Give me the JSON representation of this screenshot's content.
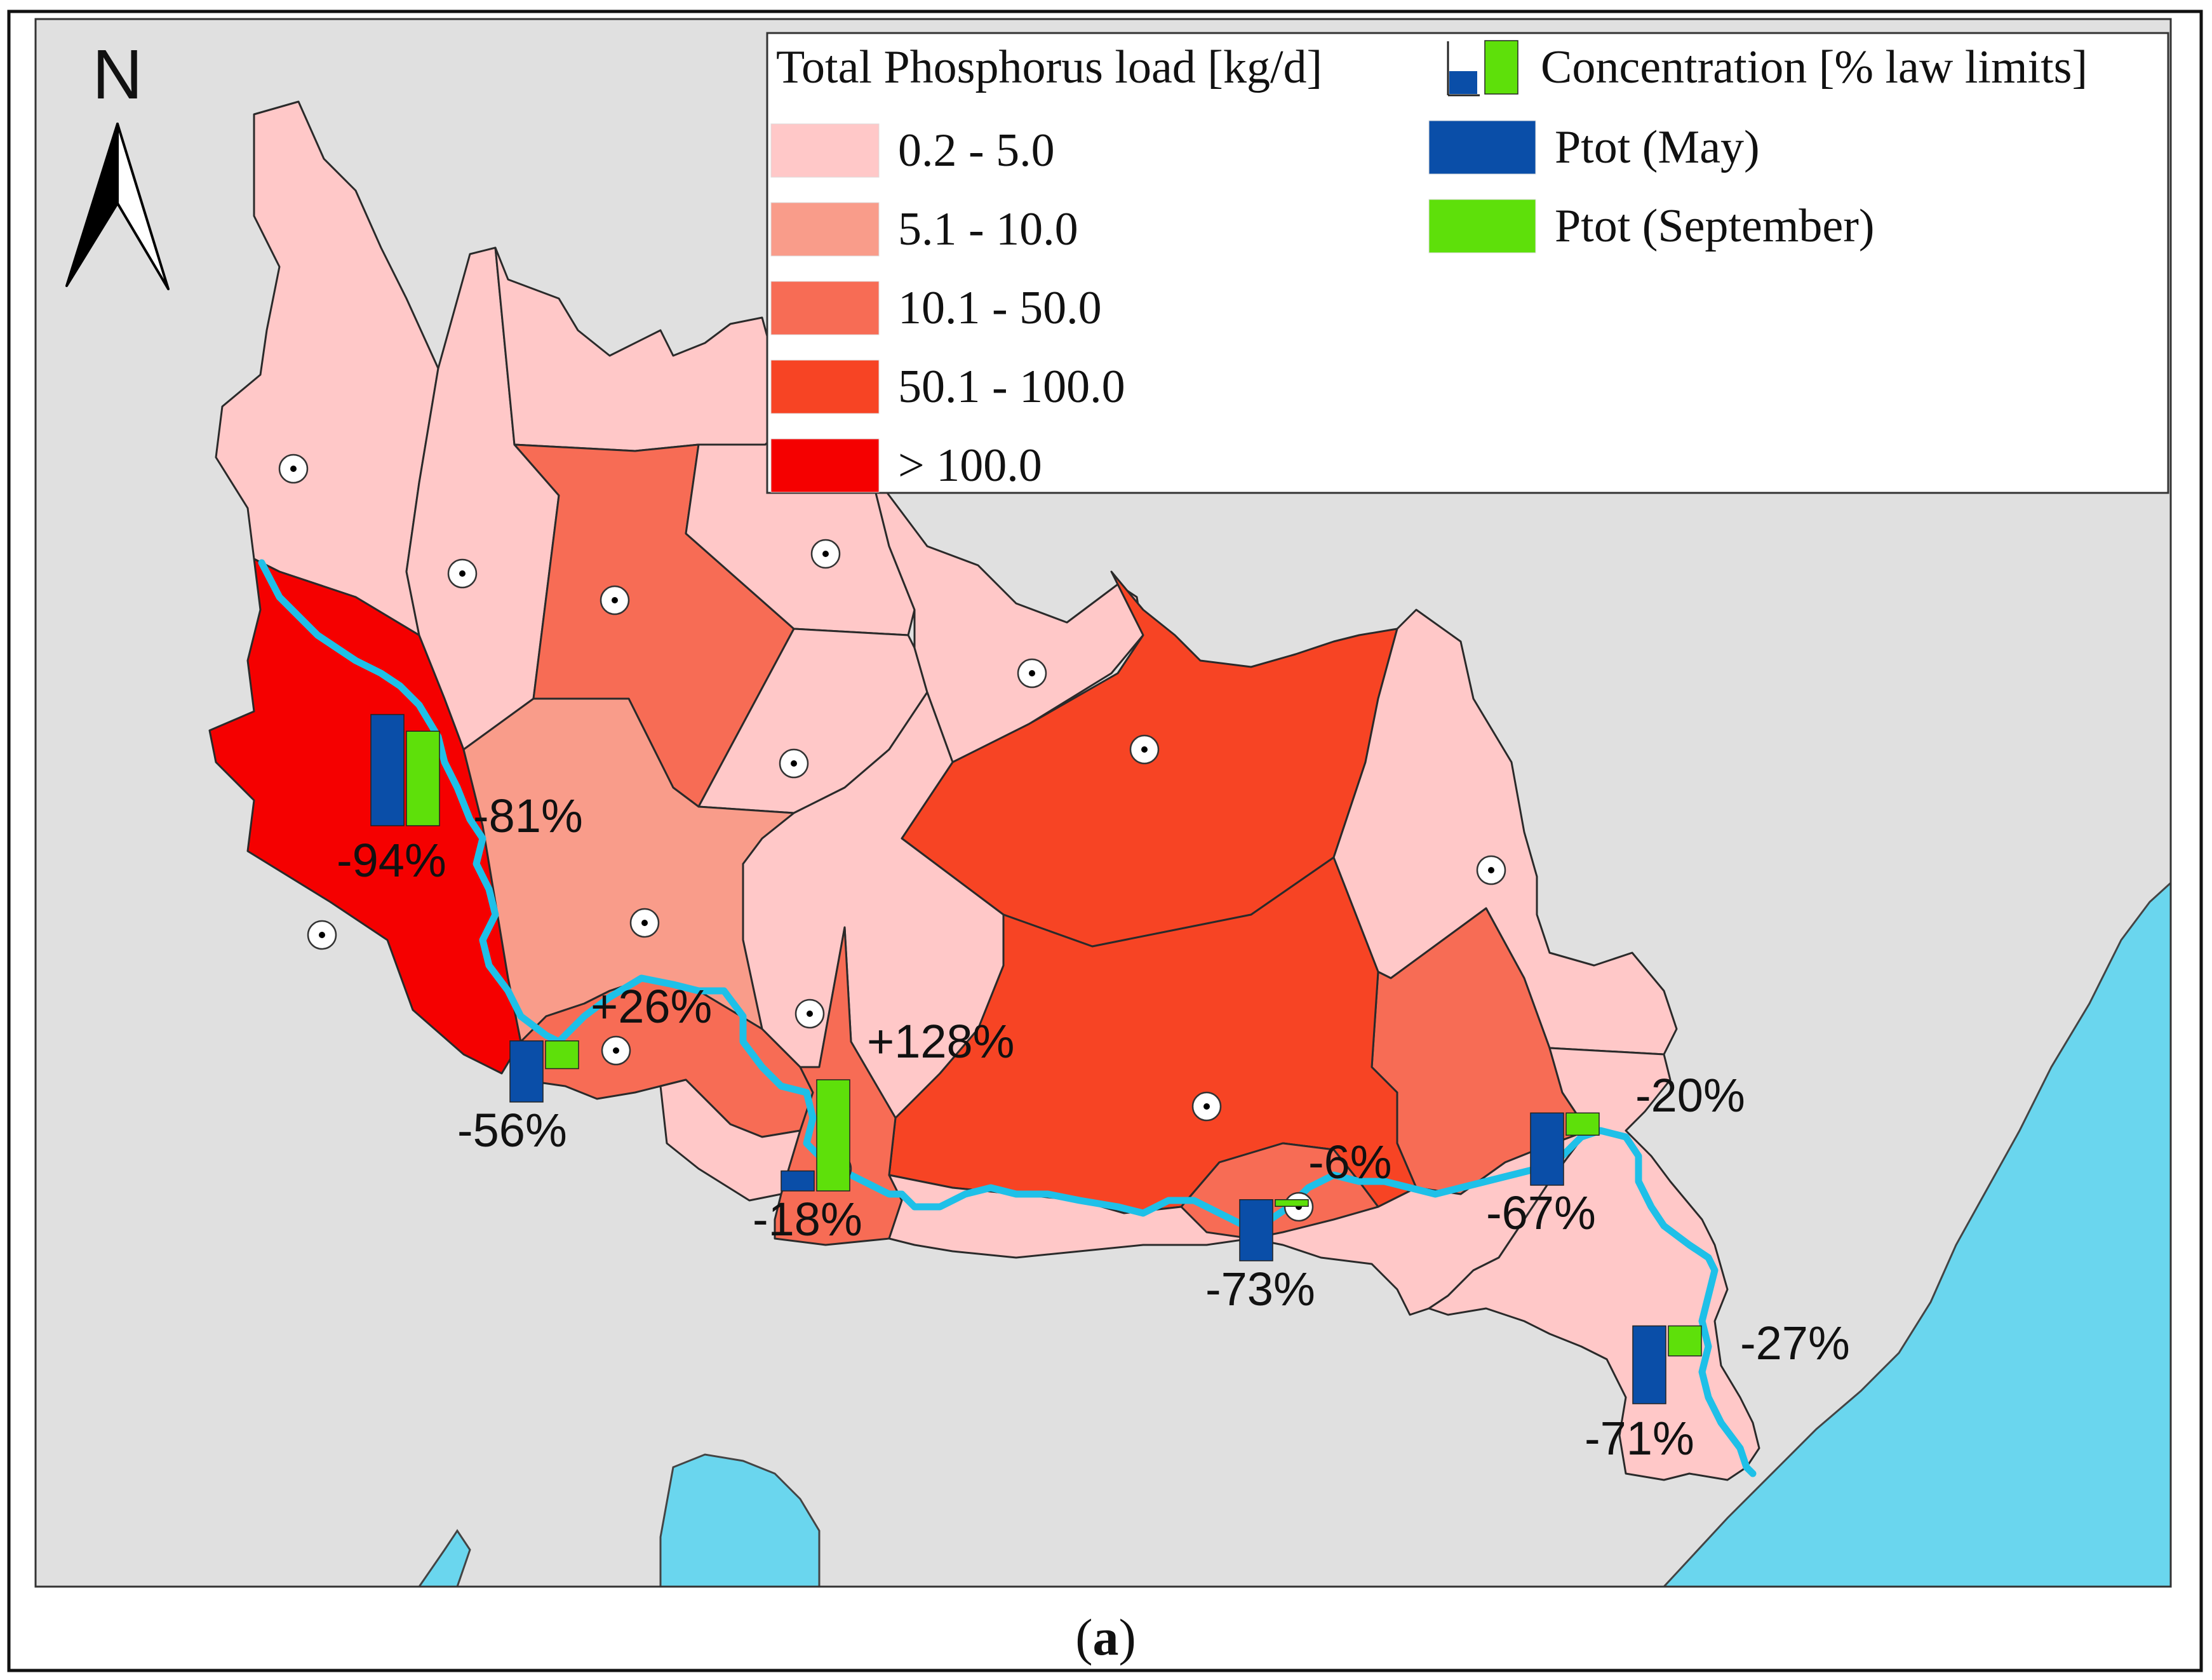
{
  "figure_label_prefix": "(",
  "figure_label_letter": "a",
  "figure_label_suffix": ")",
  "north_arrow_label": "N",
  "legend": {
    "load_title": "Total Phosphorus load [kg/d]",
    "concentration_title": "Concentration [% law limits]",
    "load_classes": [
      {
        "label": "0.2 - 5.0",
        "color": "#ffc8c8"
      },
      {
        "label": "5.1 - 10.0",
        "color": "#f99c8a"
      },
      {
        "label": "10.1 - 50.0",
        "color": "#f76c55"
      },
      {
        "label": "50.1 - 100.0",
        "color": "#f74424"
      },
      {
        "label": "> 100.0",
        "color": "#f50000"
      }
    ],
    "series": [
      {
        "label": "Ptot (May)",
        "color": "#0a4ea8"
      },
      {
        "label": "Ptot (September)",
        "color": "#5ee00a"
      }
    ]
  },
  "colors": {
    "background_land": "#e0e0e0",
    "sea_lake": "#6ad6ee",
    "river": "#1ec0e8",
    "map_frame": "#111111"
  },
  "sites": [
    {
      "may_pct": "-94%",
      "sep_pct": "-81%",
      "may_level": 1.0,
      "sep_level": 0.85
    },
    {
      "may_pct": "-56%",
      "sep_pct": "+26%",
      "may_level": 0.55,
      "sep_level": 0.25
    },
    {
      "may_pct": "-18%",
      "sep_pct": "+128%",
      "may_level": 0.18,
      "sep_level": 1.0
    },
    {
      "may_pct": "-73%",
      "sep_pct": "-6%",
      "may_level": 0.55,
      "sep_level": 0.06
    },
    {
      "may_pct": "-67%",
      "sep_pct": "-20%",
      "may_level": 0.65,
      "sep_level": 0.2
    },
    {
      "may_pct": "-71%",
      "sep_pct": "-27%",
      "may_level": 0.7,
      "sep_level": 0.27
    }
  ]
}
